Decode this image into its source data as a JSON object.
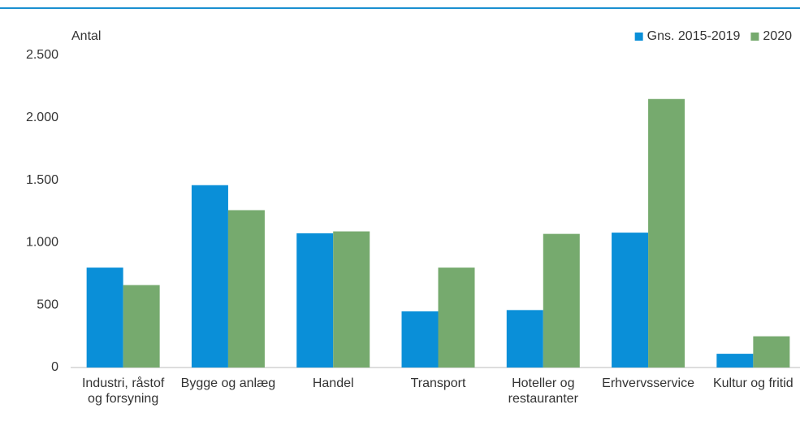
{
  "chart_data": {
    "type": "bar",
    "y_label": "Antal",
    "categories": [
      "Industri, råstof og forsyning",
      "Bygge og anlæg",
      "Handel",
      "Transport",
      "Hoteller og restauranter",
      "Erhvervsservice",
      "Kultur og fritid"
    ],
    "series": [
      {
        "name": "Gns. 2015-2019",
        "color": "#0a8fd8",
        "values": [
          800,
          1460,
          1075,
          450,
          460,
          1080,
          110
        ]
      },
      {
        "name": "2020",
        "color": "#76aa6e",
        "values": [
          660,
          1260,
          1090,
          800,
          1070,
          2150,
          250
        ]
      }
    ],
    "ylim": [
      0,
      2500
    ],
    "yticks": [
      0,
      500,
      {
        "value": 1000,
        "label": "1.000"
      },
      {
        "value": 1500,
        "label": "1.500"
      },
      {
        "value": 2000,
        "label": "2.000"
      },
      {
        "value": 2500,
        "label": "2.500"
      }
    ],
    "grid": false,
    "legend": "top-right"
  }
}
